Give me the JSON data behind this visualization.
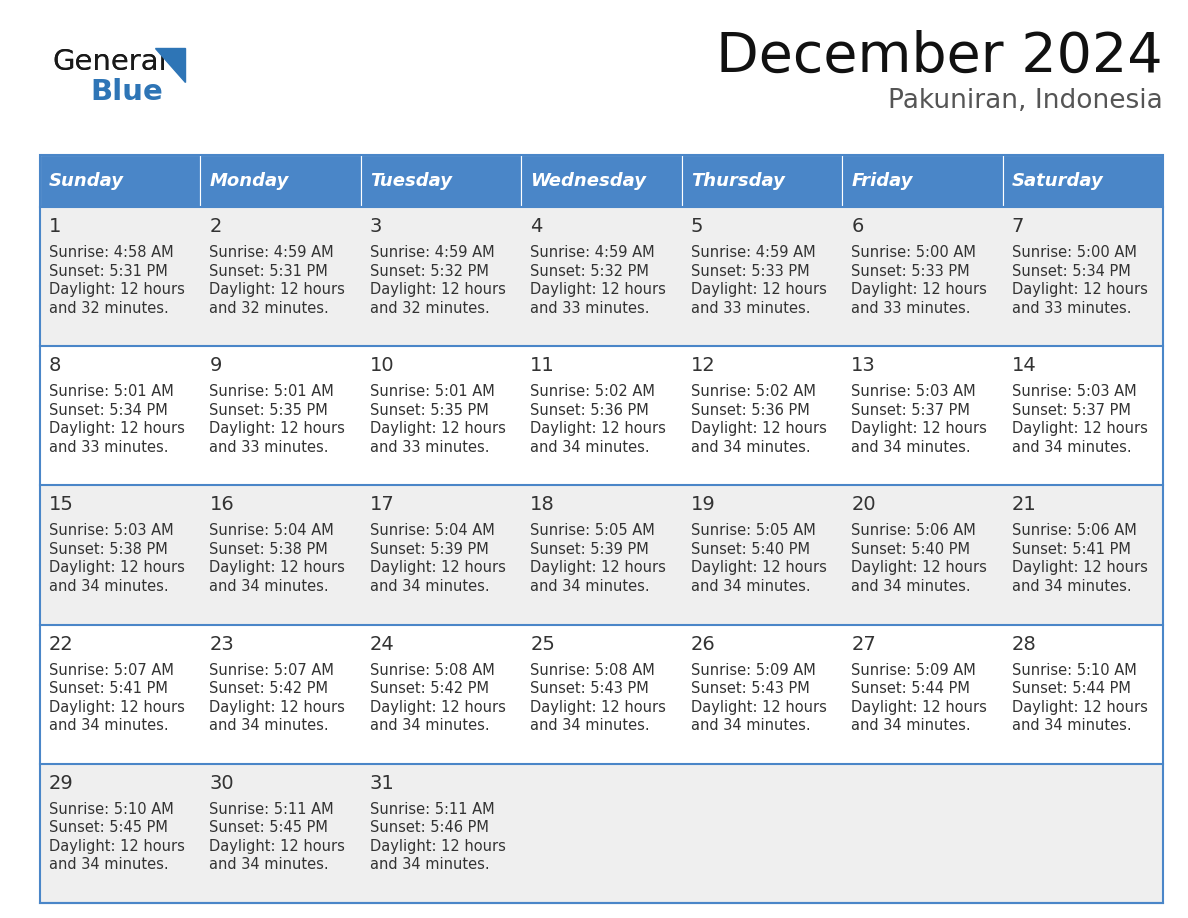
{
  "title": "December 2024",
  "subtitle": "Pakuniran, Indonesia",
  "header_bg_color": "#4A86C8",
  "header_text_color": "#FFFFFF",
  "day_names": [
    "Sunday",
    "Monday",
    "Tuesday",
    "Wednesday",
    "Thursday",
    "Friday",
    "Saturday"
  ],
  "cell_text_color": "#333333",
  "line_color": "#4A86C8",
  "bg_color": "#FFFFFF",
  "cell_bg_even": "#EFEFEF",
  "cell_bg_odd": "#FFFFFF",
  "days": [
    {
      "day": 1,
      "row": 0,
      "col": 0,
      "sunrise": "4:58 AM",
      "sunset": "5:31 PM",
      "daylight": "12 hours",
      "daylight2": "and 32 minutes."
    },
    {
      "day": 2,
      "row": 0,
      "col": 1,
      "sunrise": "4:59 AM",
      "sunset": "5:31 PM",
      "daylight": "12 hours",
      "daylight2": "and 32 minutes."
    },
    {
      "day": 3,
      "row": 0,
      "col": 2,
      "sunrise": "4:59 AM",
      "sunset": "5:32 PM",
      "daylight": "12 hours",
      "daylight2": "and 32 minutes."
    },
    {
      "day": 4,
      "row": 0,
      "col": 3,
      "sunrise": "4:59 AM",
      "sunset": "5:32 PM",
      "daylight": "12 hours",
      "daylight2": "and 33 minutes."
    },
    {
      "day": 5,
      "row": 0,
      "col": 4,
      "sunrise": "4:59 AM",
      "sunset": "5:33 PM",
      "daylight": "12 hours",
      "daylight2": "and 33 minutes."
    },
    {
      "day": 6,
      "row": 0,
      "col": 5,
      "sunrise": "5:00 AM",
      "sunset": "5:33 PM",
      "daylight": "12 hours",
      "daylight2": "and 33 minutes."
    },
    {
      "day": 7,
      "row": 0,
      "col": 6,
      "sunrise": "5:00 AM",
      "sunset": "5:34 PM",
      "daylight": "12 hours",
      "daylight2": "and 33 minutes."
    },
    {
      "day": 8,
      "row": 1,
      "col": 0,
      "sunrise": "5:01 AM",
      "sunset": "5:34 PM",
      "daylight": "12 hours",
      "daylight2": "and 33 minutes."
    },
    {
      "day": 9,
      "row": 1,
      "col": 1,
      "sunrise": "5:01 AM",
      "sunset": "5:35 PM",
      "daylight": "12 hours",
      "daylight2": "and 33 minutes."
    },
    {
      "day": 10,
      "row": 1,
      "col": 2,
      "sunrise": "5:01 AM",
      "sunset": "5:35 PM",
      "daylight": "12 hours",
      "daylight2": "and 33 minutes."
    },
    {
      "day": 11,
      "row": 1,
      "col": 3,
      "sunrise": "5:02 AM",
      "sunset": "5:36 PM",
      "daylight": "12 hours",
      "daylight2": "and 34 minutes."
    },
    {
      "day": 12,
      "row": 1,
      "col": 4,
      "sunrise": "5:02 AM",
      "sunset": "5:36 PM",
      "daylight": "12 hours",
      "daylight2": "and 34 minutes."
    },
    {
      "day": 13,
      "row": 1,
      "col": 5,
      "sunrise": "5:03 AM",
      "sunset": "5:37 PM",
      "daylight": "12 hours",
      "daylight2": "and 34 minutes."
    },
    {
      "day": 14,
      "row": 1,
      "col": 6,
      "sunrise": "5:03 AM",
      "sunset": "5:37 PM",
      "daylight": "12 hours",
      "daylight2": "and 34 minutes."
    },
    {
      "day": 15,
      "row": 2,
      "col": 0,
      "sunrise": "5:03 AM",
      "sunset": "5:38 PM",
      "daylight": "12 hours",
      "daylight2": "and 34 minutes."
    },
    {
      "day": 16,
      "row": 2,
      "col": 1,
      "sunrise": "5:04 AM",
      "sunset": "5:38 PM",
      "daylight": "12 hours",
      "daylight2": "and 34 minutes."
    },
    {
      "day": 17,
      "row": 2,
      "col": 2,
      "sunrise": "5:04 AM",
      "sunset": "5:39 PM",
      "daylight": "12 hours",
      "daylight2": "and 34 minutes."
    },
    {
      "day": 18,
      "row": 2,
      "col": 3,
      "sunrise": "5:05 AM",
      "sunset": "5:39 PM",
      "daylight": "12 hours",
      "daylight2": "and 34 minutes."
    },
    {
      "day": 19,
      "row": 2,
      "col": 4,
      "sunrise": "5:05 AM",
      "sunset": "5:40 PM",
      "daylight": "12 hours",
      "daylight2": "and 34 minutes."
    },
    {
      "day": 20,
      "row": 2,
      "col": 5,
      "sunrise": "5:06 AM",
      "sunset": "5:40 PM",
      "daylight": "12 hours",
      "daylight2": "and 34 minutes."
    },
    {
      "day": 21,
      "row": 2,
      "col": 6,
      "sunrise": "5:06 AM",
      "sunset": "5:41 PM",
      "daylight": "12 hours",
      "daylight2": "and 34 minutes."
    },
    {
      "day": 22,
      "row": 3,
      "col": 0,
      "sunrise": "5:07 AM",
      "sunset": "5:41 PM",
      "daylight": "12 hours",
      "daylight2": "and 34 minutes."
    },
    {
      "day": 23,
      "row": 3,
      "col": 1,
      "sunrise": "5:07 AM",
      "sunset": "5:42 PM",
      "daylight": "12 hours",
      "daylight2": "and 34 minutes."
    },
    {
      "day": 24,
      "row": 3,
      "col": 2,
      "sunrise": "5:08 AM",
      "sunset": "5:42 PM",
      "daylight": "12 hours",
      "daylight2": "and 34 minutes."
    },
    {
      "day": 25,
      "row": 3,
      "col": 3,
      "sunrise": "5:08 AM",
      "sunset": "5:43 PM",
      "daylight": "12 hours",
      "daylight2": "and 34 minutes."
    },
    {
      "day": 26,
      "row": 3,
      "col": 4,
      "sunrise": "5:09 AM",
      "sunset": "5:43 PM",
      "daylight": "12 hours",
      "daylight2": "and 34 minutes."
    },
    {
      "day": 27,
      "row": 3,
      "col": 5,
      "sunrise": "5:09 AM",
      "sunset": "5:44 PM",
      "daylight": "12 hours",
      "daylight2": "and 34 minutes."
    },
    {
      "day": 28,
      "row": 3,
      "col": 6,
      "sunrise": "5:10 AM",
      "sunset": "5:44 PM",
      "daylight": "12 hours",
      "daylight2": "and 34 minutes."
    },
    {
      "day": 29,
      "row": 4,
      "col": 0,
      "sunrise": "5:10 AM",
      "sunset": "5:45 PM",
      "daylight": "12 hours",
      "daylight2": "and 34 minutes."
    },
    {
      "day": 30,
      "row": 4,
      "col": 1,
      "sunrise": "5:11 AM",
      "sunset": "5:45 PM",
      "daylight": "12 hours",
      "daylight2": "and 34 minutes."
    },
    {
      "day": 31,
      "row": 4,
      "col": 2,
      "sunrise": "5:11 AM",
      "sunset": "5:46 PM",
      "daylight": "12 hours",
      "daylight2": "and 34 minutes."
    }
  ]
}
